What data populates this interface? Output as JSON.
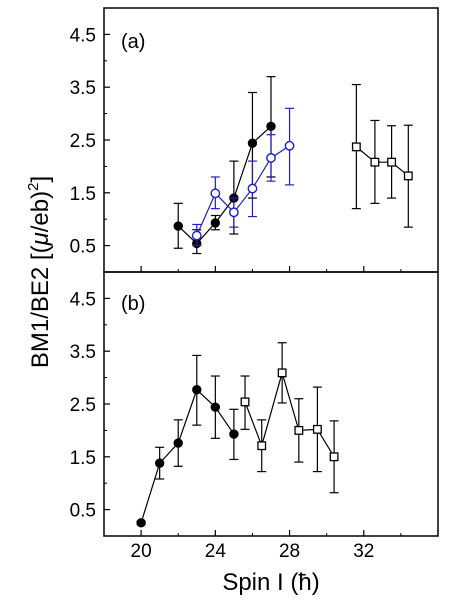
{
  "chart_data": {
    "type": "scatter",
    "xlabel": "Spin I (ħ)",
    "ylabel": "BM1/BE2 [(μ/eb)²]",
    "ylabel_prefix": "BM1/BE2 [(",
    "ylabel_mu": "μ",
    "ylabel_mid": "/eb)",
    "ylabel_sup": "2",
    "ylabel_suffix": "]",
    "xlim": [
      18,
      36
    ],
    "x_ticks": [
      20,
      24,
      28,
      32
    ],
    "x_tick_labels": [
      "20",
      "24",
      "28",
      "32"
    ],
    "grid": false,
    "colors": {
      "black": "#000000",
      "blue": "#1f1fc8"
    },
    "panels": [
      {
        "label": "(a)",
        "ylim": [
          0,
          5
        ],
        "y_ticks": [
          0.5,
          1.5,
          2.5,
          3.5,
          4.5
        ],
        "y_tick_labels": [
          "0.5",
          "1.5",
          "2.5",
          "3.5",
          "4.5"
        ],
        "series": [
          {
            "marker": "filled-circle",
            "color": "#000000",
            "points": [
              {
                "x": 22,
                "y": 0.87,
                "lo": 0.45,
                "hi": 1.3
              },
              {
                "x": 23,
                "y": 0.54,
                "lo": 0.35,
                "hi": 0.8
              },
              {
                "x": 24,
                "y": 0.93,
                "lo": 0.8,
                "hi": 1.07
              },
              {
                "x": 25,
                "y": 1.4,
                "lo": 0.72,
                "hi": 2.1
              },
              {
                "x": 26,
                "y": 2.44,
                "lo": 1.4,
                "hi": 3.4
              },
              {
                "x": 27,
                "y": 2.76,
                "lo": 1.8,
                "hi": 3.7
              }
            ]
          },
          {
            "marker": "open-circle",
            "color": "#1f1fc8",
            "points": [
              {
                "x": 23,
                "y": 0.69,
                "lo": 0.5,
                "hi": 0.9
              },
              {
                "x": 24,
                "y": 1.49,
                "lo": 1.2,
                "hi": 1.8
              },
              {
                "x": 25,
                "y": 1.13,
                "lo": 0.85,
                "hi": 1.4
              },
              {
                "x": 26,
                "y": 1.58,
                "lo": 1.05,
                "hi": 2.1
              },
              {
                "x": 27,
                "y": 2.16,
                "lo": 1.72,
                "hi": 2.6
              },
              {
                "x": 28,
                "y": 2.39,
                "lo": 1.65,
                "hi": 3.1
              }
            ]
          },
          {
            "marker": "open-square",
            "color": "#000000",
            "points": [
              {
                "x": 31.6,
                "y": 2.37,
                "lo": 1.2,
                "hi": 3.55
              },
              {
                "x": 32.6,
                "y": 2.08,
                "lo": 1.3,
                "hi": 2.87
              },
              {
                "x": 33.5,
                "y": 2.08,
                "lo": 1.4,
                "hi": 2.77
              },
              {
                "x": 34.4,
                "y": 1.82,
                "lo": 0.85,
                "hi": 2.78
              }
            ]
          }
        ]
      },
      {
        "label": "(b)",
        "ylim": [
          0,
          5
        ],
        "y_ticks": [
          0.5,
          1.5,
          2.5,
          3.5,
          4.5
        ],
        "y_tick_labels": [
          "0.5",
          "1.5",
          "2.5",
          "3.5",
          "4.5"
        ],
        "series": [
          {
            "marker": "filled-circle",
            "color": "#000000",
            "points": [
              {
                "x": 20,
                "y": 0.25,
                "lo": 0.22,
                "hi": 0.28
              },
              {
                "x": 21,
                "y": 1.38,
                "lo": 1.08,
                "hi": 1.68
              },
              {
                "x": 22,
                "y": 1.76,
                "lo": 1.32,
                "hi": 2.2
              },
              {
                "x": 23,
                "y": 2.77,
                "lo": 2.1,
                "hi": 3.42
              },
              {
                "x": 24,
                "y": 2.44,
                "lo": 1.85,
                "hi": 3.03
              },
              {
                "x": 25,
                "y": 1.93,
                "lo": 1.45,
                "hi": 2.4
              }
            ]
          },
          {
            "marker": "open-square",
            "color": "#000000",
            "points": [
              {
                "x": 25.6,
                "y": 2.54,
                "lo": 2.02,
                "hi": 3.03
              },
              {
                "x": 26.5,
                "y": 1.71,
                "lo": 1.22,
                "hi": 2.2
              },
              {
                "x": 27.6,
                "y": 3.09,
                "lo": 2.52,
                "hi": 3.66
              },
              {
                "x": 28.5,
                "y": 2.0,
                "lo": 1.4,
                "hi": 2.6
              },
              {
                "x": 29.5,
                "y": 2.02,
                "lo": 1.22,
                "hi": 2.82
              },
              {
                "x": 30.4,
                "y": 1.5,
                "lo": 0.82,
                "hi": 2.18
              }
            ]
          }
        ]
      }
    ]
  }
}
